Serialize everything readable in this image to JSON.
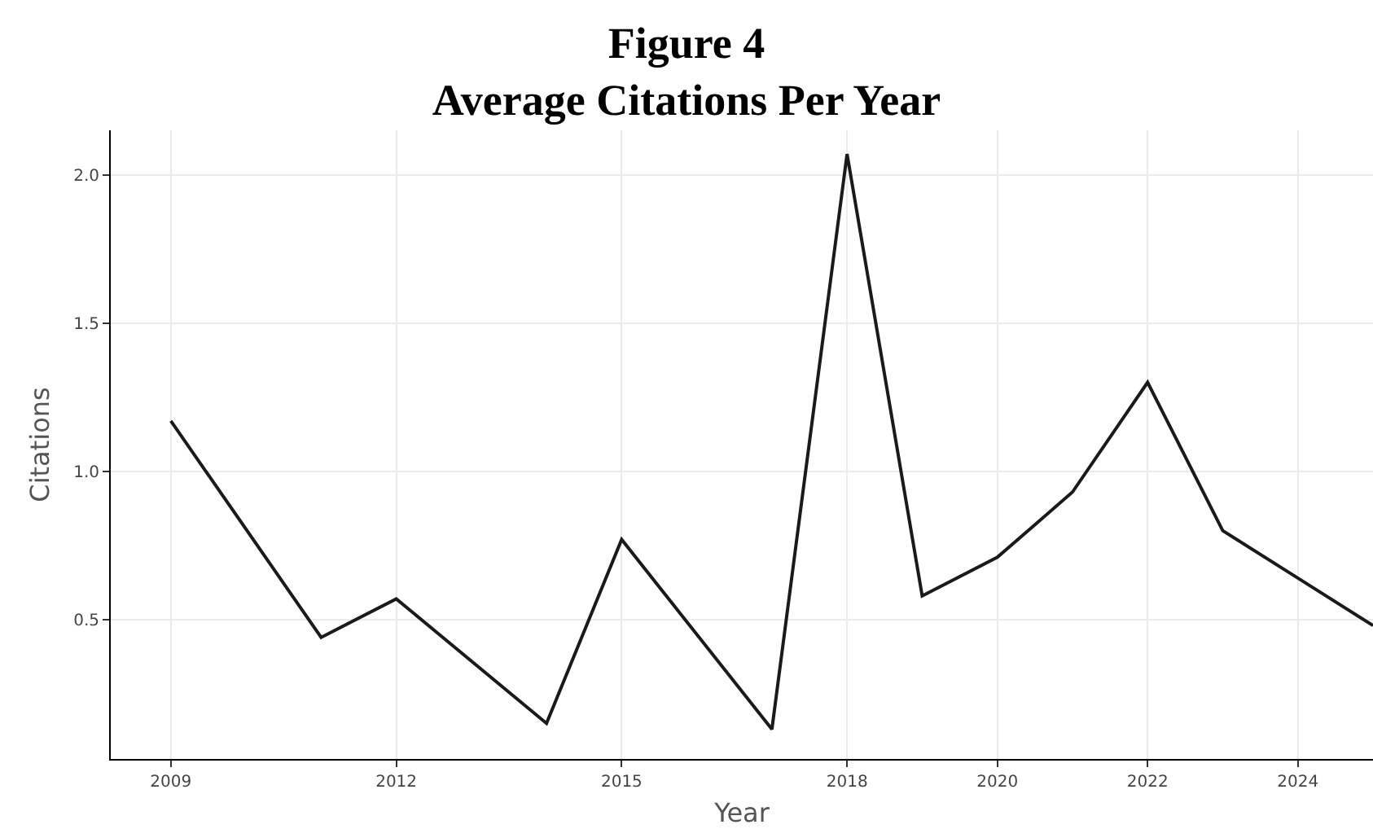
{
  "chart_data": {
    "type": "line",
    "title": "Figure 4\nAverage Citations Per Year",
    "xlabel": "Year",
    "ylabel": "Citations",
    "x": [
      2009,
      2011,
      2012,
      2014,
      2015,
      2017,
      2018,
      2019,
      2020,
      2021,
      2022,
      2023,
      2024,
      2025
    ],
    "series": [
      {
        "color": "#1a1a1a",
        "values": [
          1.17,
          0.44,
          0.57,
          0.15,
          0.77,
          0.13,
          2.07,
          0.58,
          0.71,
          0.93,
          1.3,
          0.8,
          0.64,
          0.48
        ]
      }
    ],
    "xlim": [
      2008.2,
      2025
    ],
    "xticks": [
      2009,
      2012,
      2015,
      2018,
      2020,
      2022,
      2024
    ],
    "ylim": [
      0.03,
      2.15
    ],
    "yticks": [
      {
        "value": 0.5,
        "label": "0.5"
      },
      {
        "value": 1,
        "label": "1.0"
      },
      {
        "value": 1.5,
        "label": "1.5"
      },
      {
        "value": 2,
        "label": "2.0"
      }
    ],
    "grid": true,
    "legend": false,
    "marker": "none",
    "line_style": "solid"
  }
}
